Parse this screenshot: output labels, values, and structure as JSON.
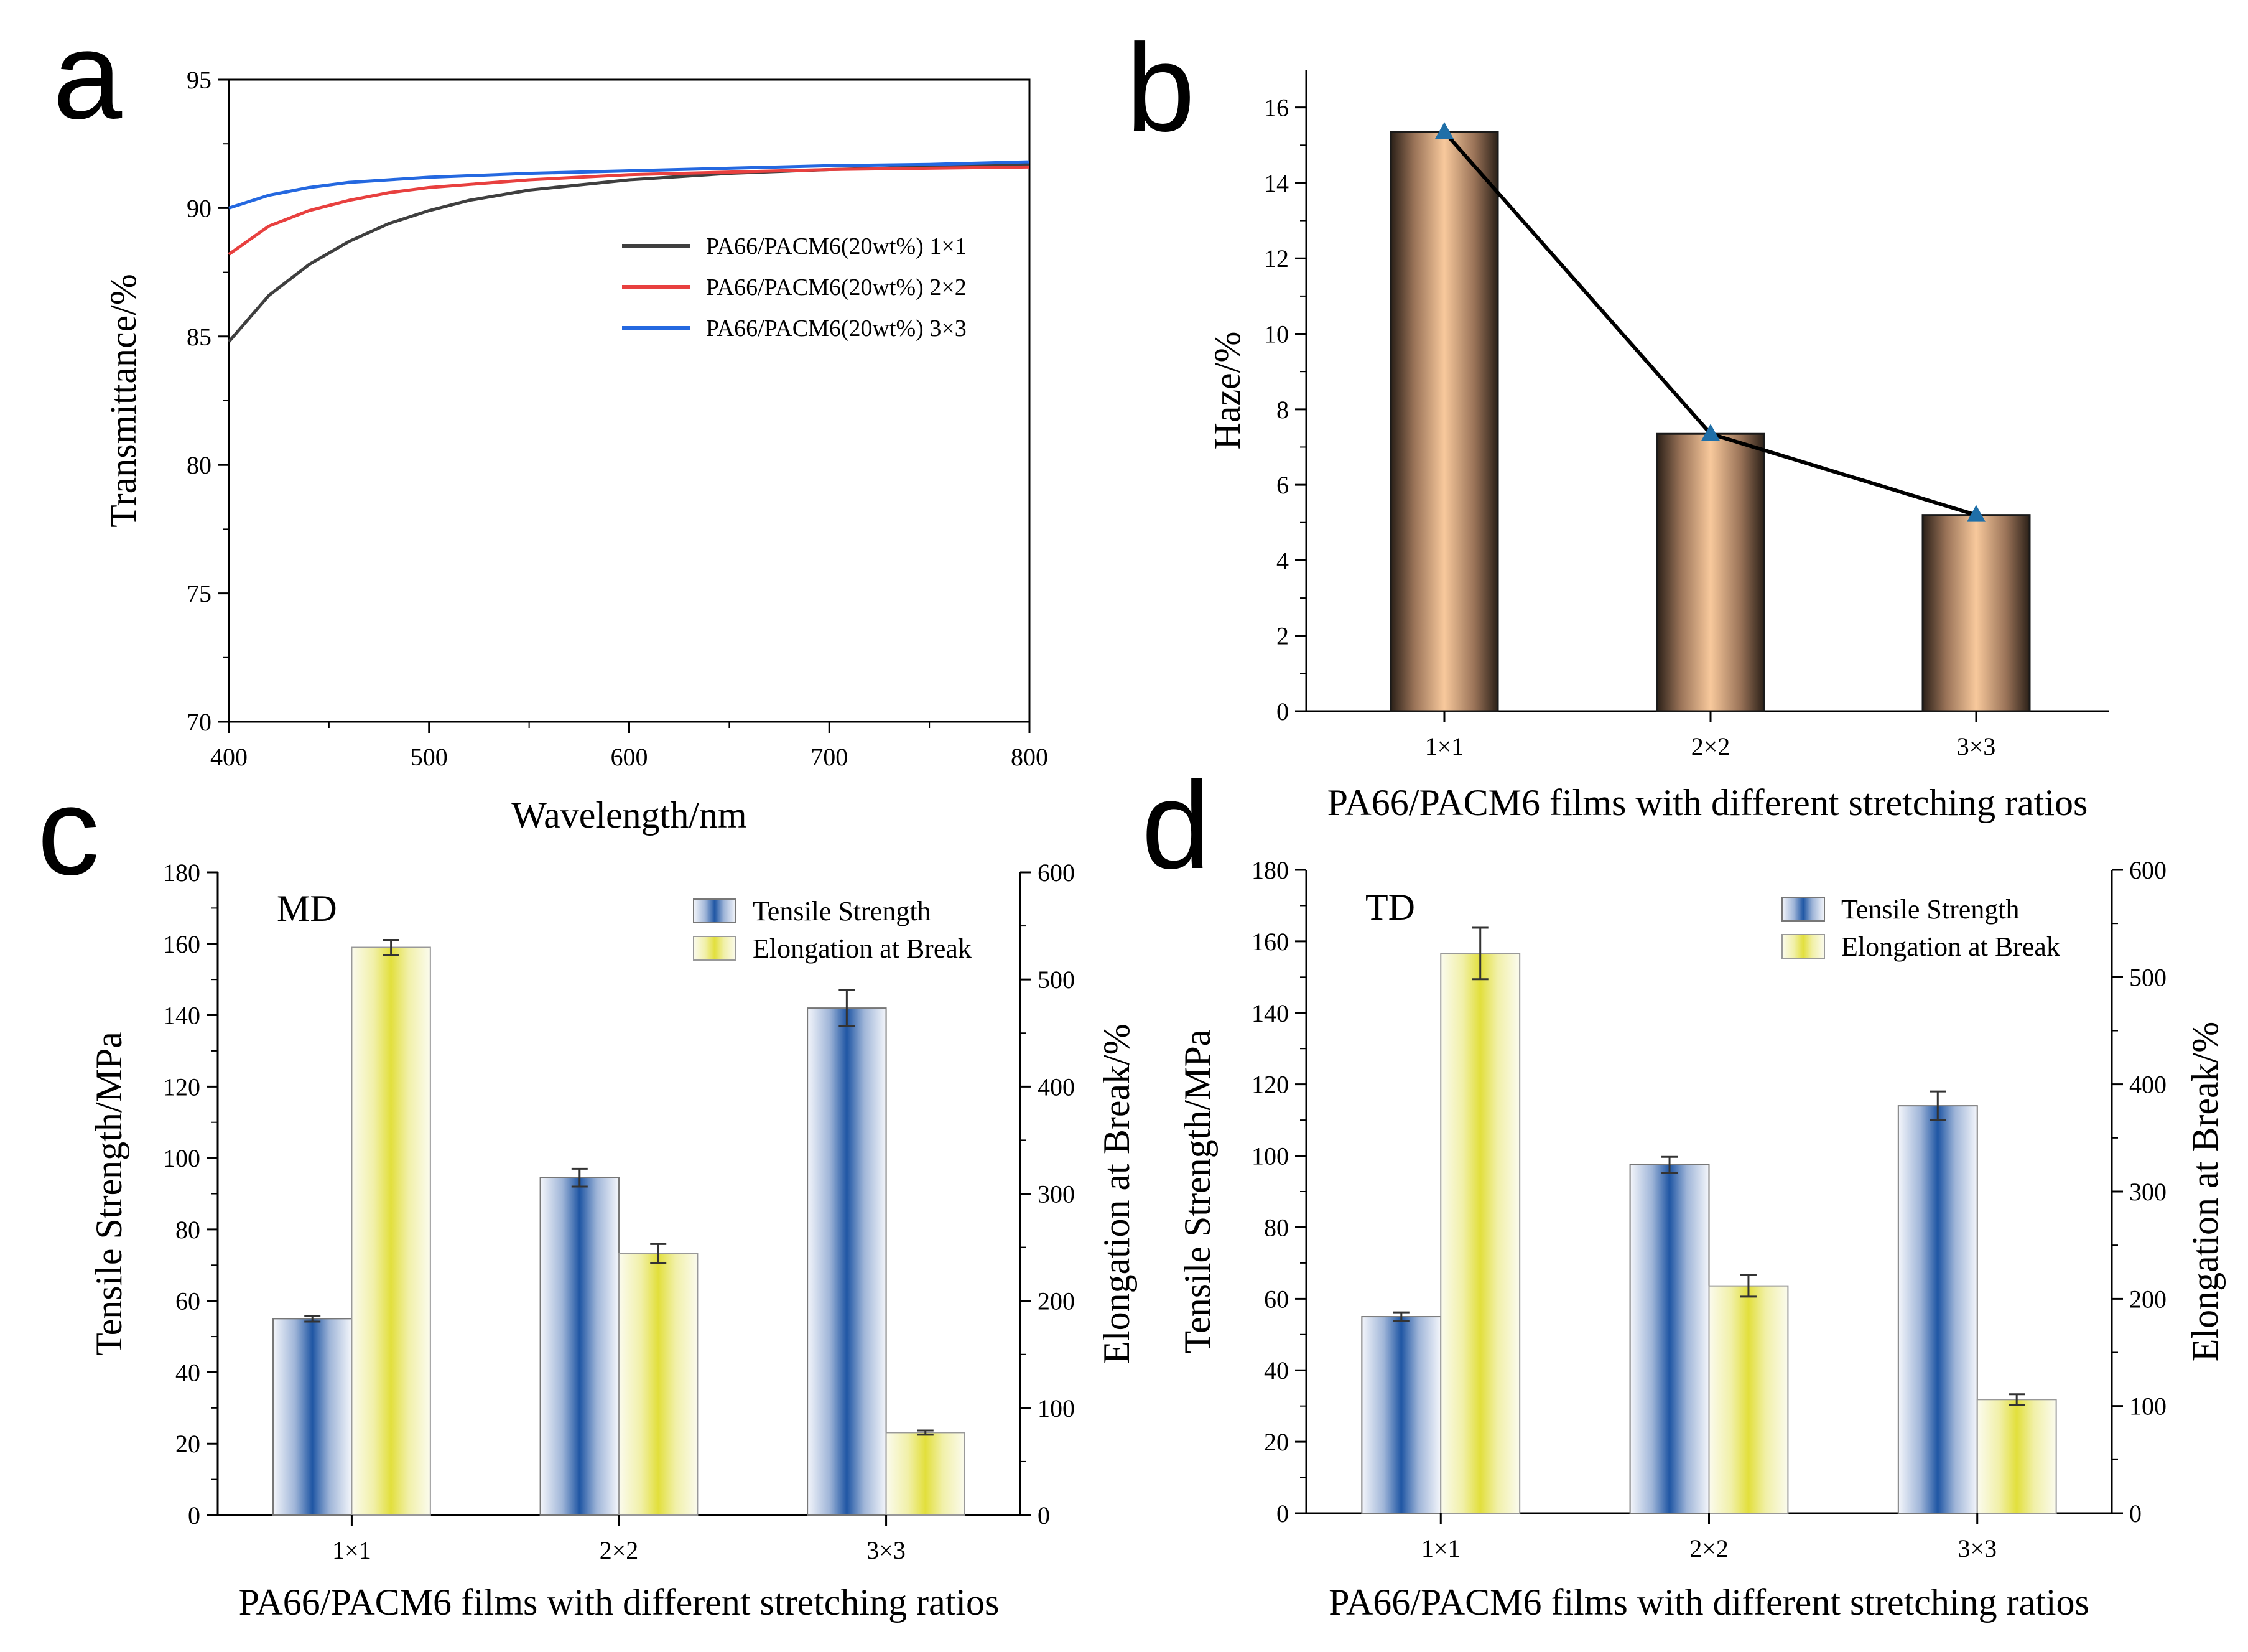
{
  "chart_data": [
    {
      "panel": "a",
      "type": "line",
      "xlabel": "Wavelength/nm",
      "ylabel": "Transmittance/%",
      "xlim": [
        400,
        800
      ],
      "ylim": [
        70,
        95
      ],
      "xticks": [
        400,
        500,
        600,
        700,
        800
      ],
      "yticks": [
        70,
        75,
        80,
        85,
        90,
        95
      ],
      "legend_position": "right-center",
      "series": [
        {
          "name": "PA66/PACM6(20wt%) 1×1",
          "color": "#3f3f3f",
          "x": [
            400,
            420,
            440,
            460,
            480,
            500,
            520,
            550,
            600,
            650,
            700,
            750,
            800
          ],
          "y": [
            84.8,
            86.6,
            87.8,
            88.7,
            89.4,
            89.9,
            90.3,
            90.7,
            91.1,
            91.35,
            91.5,
            91.6,
            91.7
          ]
        },
        {
          "name": "PA66/PACM6(20wt%) 2×2",
          "color": "#e8403f",
          "x": [
            400,
            420,
            440,
            460,
            480,
            500,
            550,
            600,
            650,
            700,
            750,
            800
          ],
          "y": [
            88.2,
            89.3,
            89.9,
            90.3,
            90.6,
            90.8,
            91.1,
            91.3,
            91.4,
            91.5,
            91.55,
            91.6
          ]
        },
        {
          "name": "PA66/PACM6(20wt%) 3×3",
          "color": "#2468e0",
          "x": [
            400,
            420,
            440,
            460,
            480,
            500,
            550,
            600,
            650,
            700,
            750,
            800
          ],
          "y": [
            90.0,
            90.5,
            90.8,
            91.0,
            91.1,
            91.2,
            91.35,
            91.45,
            91.55,
            91.65,
            91.7,
            91.8
          ]
        }
      ]
    },
    {
      "panel": "b",
      "type": "bar",
      "xlabel": "PA66/PACM6 films with different stretching ratios",
      "ylabel": "Haze/%",
      "ylim": [
        0,
        17
      ],
      "yticks": [
        0,
        2,
        4,
        6,
        8,
        10,
        12,
        14,
        16
      ],
      "categories": [
        "1×1",
        "2×2",
        "3×3"
      ],
      "values": [
        15.35,
        7.35,
        5.2
      ],
      "bar_color": "#f7c49a",
      "line_overlay": true,
      "marker_color": "#1f6fa8"
    },
    {
      "panel": "c",
      "type": "bar",
      "label": "MD",
      "xlabel": "PA66/PACM6 films with different stretching ratios",
      "ylabel": "Tensile Strength/MPa",
      "ylabel_right": "Elongation at Break/%",
      "ylim": [
        0,
        180
      ],
      "yticks": [
        0,
        20,
        40,
        60,
        80,
        100,
        120,
        140,
        160,
        180
      ],
      "ylim_right": [
        0,
        600
      ],
      "yticks_right": [
        0,
        100,
        200,
        300,
        400,
        500,
        600
      ],
      "categories": [
        "1×1",
        "2×2",
        "3×3"
      ],
      "legend_position": "top-right",
      "series": [
        {
          "name": "Tensile Strength",
          "axis": "left",
          "color": "#2c5fa8",
          "values": [
            55,
            94.5,
            142
          ],
          "errors": [
            0.8,
            2.5,
            5.0
          ]
        },
        {
          "name": "Elongation at Break",
          "axis": "right",
          "color": "#e8e65a",
          "values": [
            530,
            244,
            77
          ],
          "errors": [
            7,
            9,
            2
          ]
        }
      ]
    },
    {
      "panel": "d",
      "type": "bar",
      "label": "TD",
      "xlabel": "PA66/PACM6 films with different stretching ratios",
      "ylabel": "Tensile Strength/MPa",
      "ylabel_right": "Elongation at Break/%",
      "ylim": [
        0,
        180
      ],
      "yticks": [
        0,
        20,
        40,
        60,
        80,
        100,
        120,
        140,
        160,
        180
      ],
      "ylim_right": [
        0,
        600
      ],
      "yticks_right": [
        0,
        100,
        200,
        300,
        400,
        500,
        600
      ],
      "categories": [
        "1×1",
        "2×2",
        "3×3"
      ],
      "legend_position": "top-right",
      "series": [
        {
          "name": "Tensile Strength",
          "axis": "left",
          "color": "#2c5fa8",
          "values": [
            55,
            97.5,
            114
          ],
          "errors": [
            1.2,
            2.2,
            4.0
          ]
        },
        {
          "name": "Elongation at Break",
          "axis": "right",
          "color": "#e8e65a",
          "values": [
            522,
            212,
            106
          ],
          "errors": [
            24,
            10,
            5
          ]
        }
      ]
    }
  ]
}
